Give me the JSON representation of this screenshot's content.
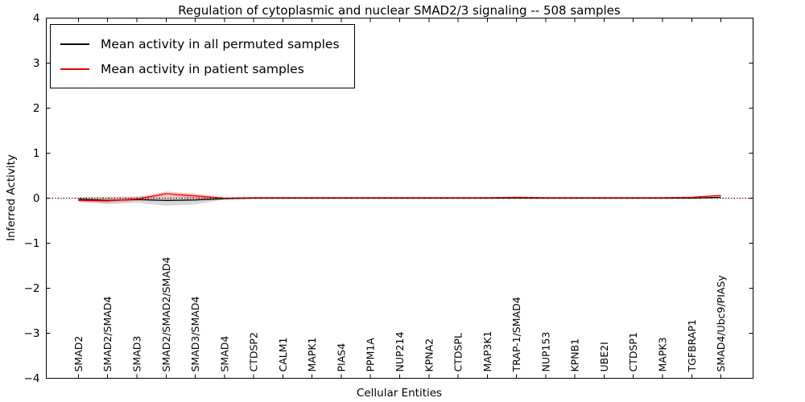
{
  "title": "Regulation of cytoplasmic and nuclear SMAD2/3 signaling -- 508 samples",
  "xlabel": "Cellular Entities",
  "ylabel": "Inferred Activity",
  "legend": {
    "items": [
      {
        "label": "Mean activity in all permuted samples",
        "color": "#000000"
      },
      {
        "label": "Mean activity in patient samples",
        "color": "#ee0000"
      }
    ]
  },
  "chart_data": {
    "type": "line",
    "title": "Regulation of cytoplasmic and nuclear SMAD2/3 signaling -- 508 samples",
    "xlabel": "Cellular Entities",
    "ylabel": "Inferred Activity",
    "ylim": [
      -4,
      4
    ],
    "yticks": [
      -4,
      -3,
      -2,
      -1,
      0,
      1,
      2,
      3,
      4
    ],
    "ytick_labels": [
      "−4",
      "−3",
      "−2",
      "−1",
      "0",
      "1",
      "2",
      "3",
      "4"
    ],
    "legend_position": "upper left",
    "grid": false,
    "zero_line": {
      "y": 0,
      "style": "dotted",
      "colors": [
        "#000000",
        "#dd0000"
      ]
    },
    "categories": [
      "SMAD2",
      "SMAD2/SMAD4",
      "SMAD3",
      "SMAD2/SMAD2/SMAD4",
      "SMAD3/SMAD4",
      "SMAD4",
      "CTDSP2",
      "CALM1",
      "MAPK1",
      "PIAS4",
      "PPM1A",
      "NUP214",
      "KPNA2",
      "CTDSPL",
      "MAP3K1",
      "TRAP-1/SMAD4",
      "NUP153",
      "KPNB1",
      "UBE2I",
      "CTDSP1",
      "MAPK3",
      "TGFBRAP1",
      "SMAD4/Ubc9/PIASy"
    ],
    "series": [
      {
        "name": "Mean activity in all permuted samples",
        "color": "#000000",
        "band_color": "#999999",
        "values": [
          -0.02,
          -0.05,
          -0.03,
          -0.05,
          -0.04,
          -0.01,
          0,
          0,
          0,
          0,
          0,
          0,
          0,
          0,
          0,
          0,
          0,
          0,
          0,
          0,
          0,
          0,
          0.02
        ],
        "band_upper": [
          0.03,
          0.03,
          0.04,
          0.07,
          0.05,
          0.01,
          0.01,
          0.01,
          0.01,
          0.01,
          0.01,
          0.01,
          0.01,
          0.01,
          0.01,
          0.01,
          0.01,
          0.01,
          0.01,
          0.01,
          0.01,
          0.01,
          0.04
        ],
        "band_lower": [
          -0.07,
          -0.13,
          -0.1,
          -0.17,
          -0.14,
          -0.03,
          -0.01,
          -0.01,
          -0.01,
          -0.01,
          -0.01,
          -0.01,
          -0.01,
          -0.01,
          -0.01,
          -0.01,
          -0.01,
          -0.01,
          -0.01,
          -0.01,
          -0.01,
          -0.01,
          0.0
        ]
      },
      {
        "name": "Mean activity in patient samples",
        "color": "#ee0000",
        "band_color": "#ff7070",
        "values": [
          -0.05,
          -0.06,
          -0.02,
          0.1,
          0.05,
          0.0,
          0.01,
          0.01,
          0.01,
          0.01,
          0.01,
          0.01,
          0.01,
          0.01,
          0.01,
          0.02,
          0.01,
          0.01,
          0.01,
          0.01,
          0.01,
          0.02,
          0.06
        ],
        "band_upper": [
          -0.01,
          -0.01,
          0.02,
          0.15,
          0.1,
          0.02,
          0.02,
          0.02,
          0.02,
          0.02,
          0.02,
          0.02,
          0.02,
          0.02,
          0.02,
          0.03,
          0.02,
          0.02,
          0.02,
          0.02,
          0.02,
          0.03,
          0.08
        ],
        "band_lower": [
          -0.09,
          -0.11,
          -0.06,
          0.05,
          0.0,
          -0.02,
          0.0,
          0.0,
          0.0,
          0.0,
          0.0,
          0.0,
          0.0,
          0.0,
          0.0,
          0.01,
          0.0,
          0.0,
          0.0,
          0.0,
          0.0,
          0.01,
          0.04
        ]
      }
    ]
  }
}
